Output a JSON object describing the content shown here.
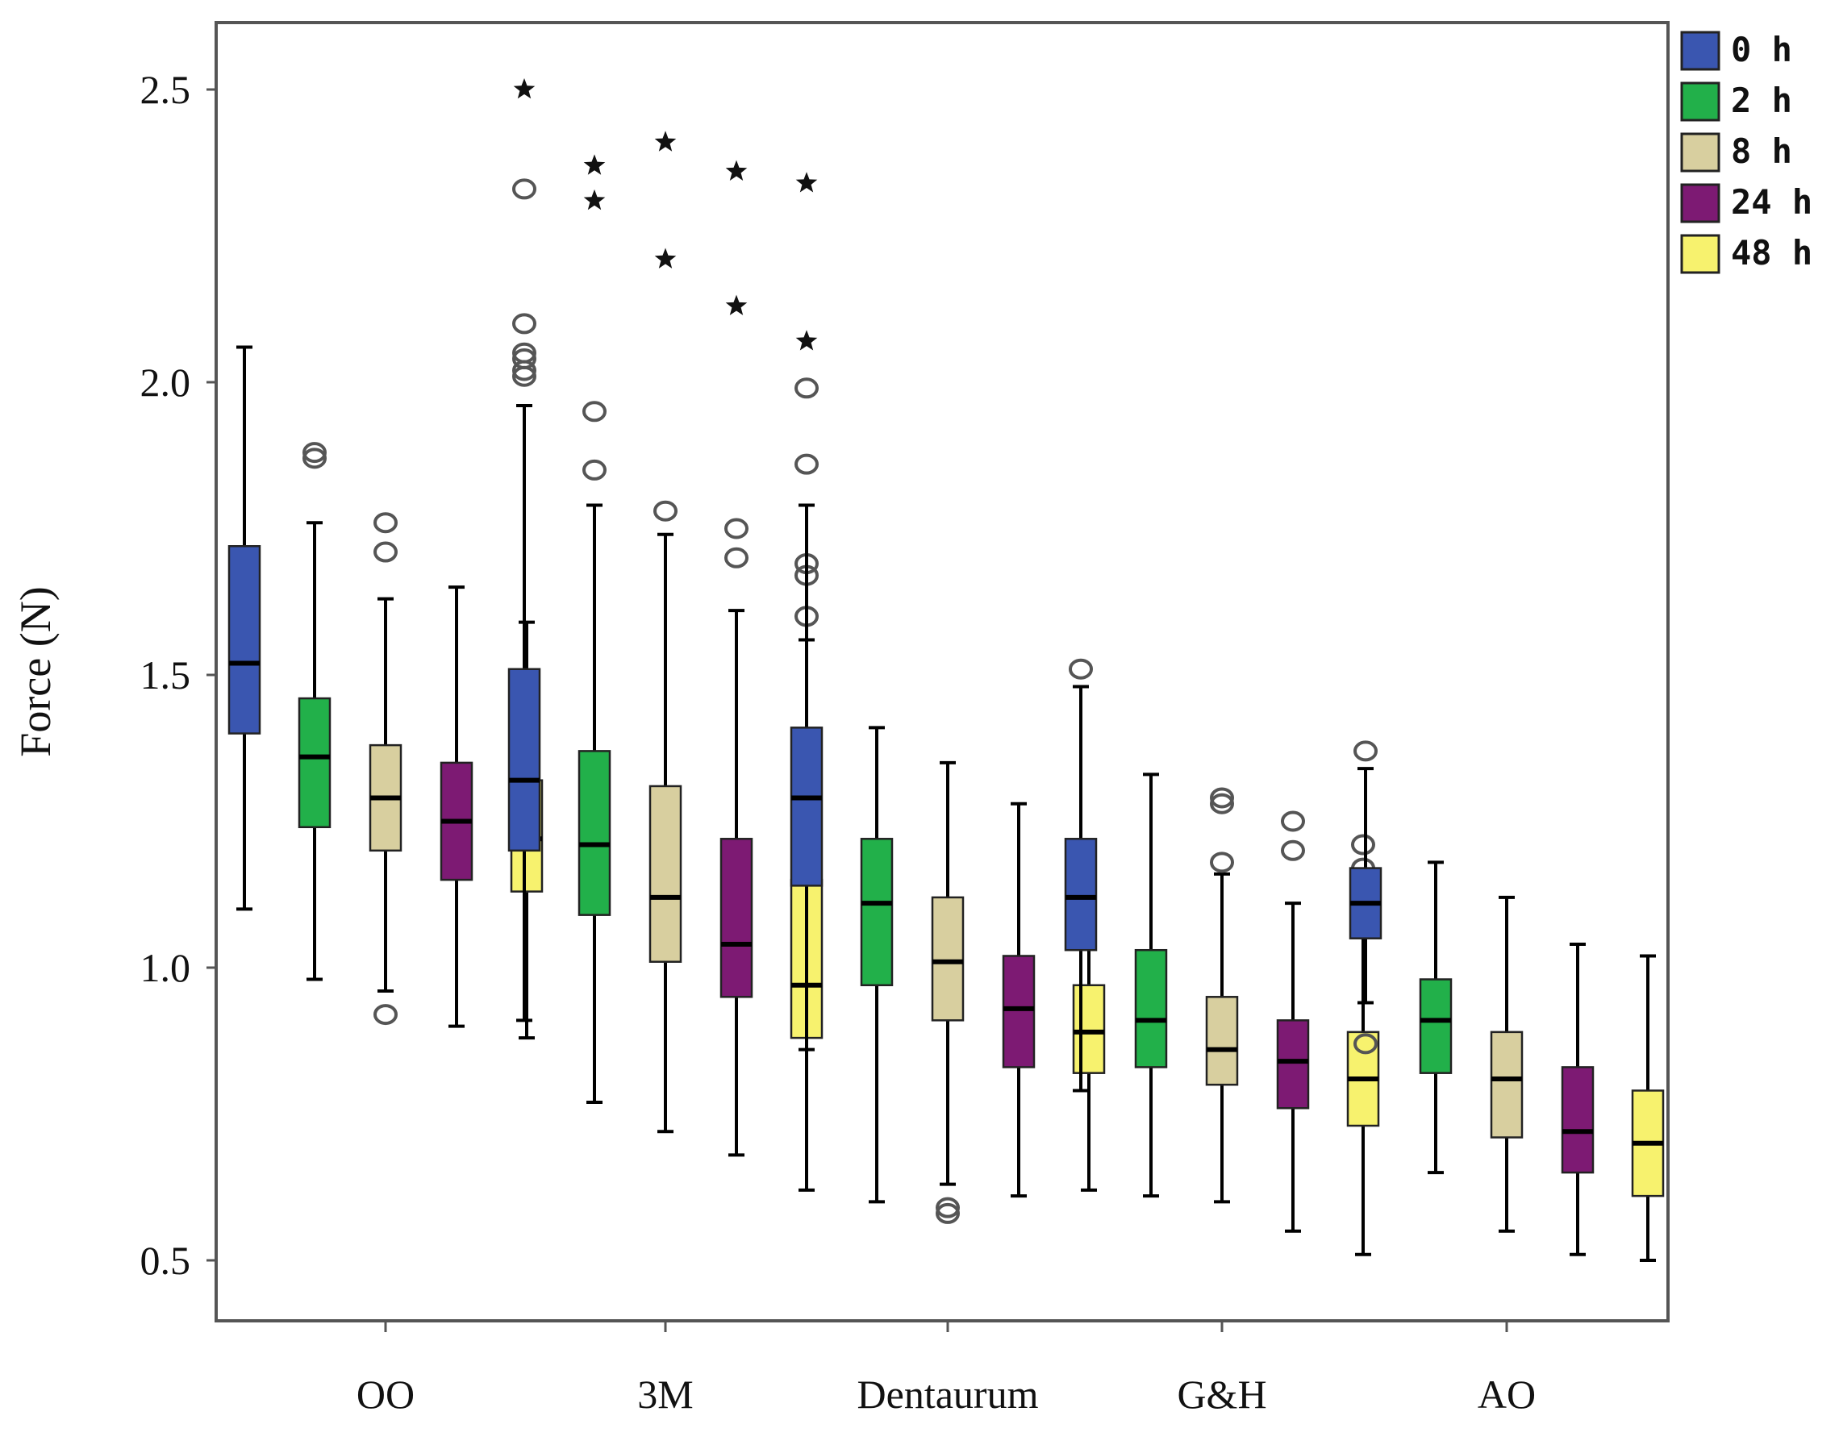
{
  "chart_data": {
    "type": "boxplot",
    "ylabel": "Force (N)",
    "ylim": [
      0.3,
      2.6
    ],
    "yticks": [
      {
        "value": 0.5,
        "label": "0.5"
      },
      {
        "value": 1.0,
        "label": "1.0"
      },
      {
        "value": 1.5,
        "label": "1.5"
      },
      {
        "value": 2.0,
        "label": "2.0"
      },
      {
        "value": 2.5,
        "label": "2.5"
      }
    ],
    "categories": [
      "OO",
      "3M",
      "Dentaurum",
      "G&H",
      "AO"
    ],
    "legend_position": "top-right",
    "series": [
      {
        "name": "0 h",
        "color": "#3a56b0"
      },
      {
        "name": "2 h",
        "color": "#22b04a"
      },
      {
        "name": "8 h",
        "color": "#d8cf9f"
      },
      {
        "name": "24 h",
        "color": "#7d1a73"
      },
      {
        "name": "48 h",
        "color": "#f7f26e"
      }
    ],
    "boxes": [
      [
        {
          "whisker_low": 1.1,
          "q1": 1.4,
          "median": 1.52,
          "q3": 1.72,
          "whisker_high": 2.06,
          "outliers": [],
          "extremes": []
        },
        {
          "whisker_low": 0.98,
          "q1": 1.24,
          "median": 1.36,
          "q3": 1.46,
          "whisker_high": 1.76,
          "outliers": [
            1.87,
            1.88
          ],
          "extremes": []
        },
        {
          "whisker_low": 0.96,
          "q1": 1.2,
          "median": 1.29,
          "q3": 1.38,
          "whisker_high": 1.63,
          "outliers": [
            0.92,
            1.71,
            1.76
          ],
          "extremes": []
        },
        {
          "whisker_low": 0.9,
          "q1": 1.15,
          "median": 1.25,
          "q3": 1.35,
          "whisker_high": 1.65,
          "outliers": [],
          "extremes": []
        },
        {
          "whisker_low": 0.88,
          "q1": 1.13,
          "median": 1.22,
          "q3": 1.32,
          "whisker_high": 1.59,
          "outliers": [],
          "extremes": []
        }
      ],
      [
        {
          "whisker_low": 0.91,
          "q1": 1.2,
          "median": 1.32,
          "q3": 1.51,
          "whisker_high": 1.96,
          "outliers": [
            2.01,
            2.02,
            2.04,
            2.05,
            2.1,
            2.33
          ],
          "extremes": [
            2.5
          ]
        },
        {
          "whisker_low": 0.77,
          "q1": 1.09,
          "median": 1.21,
          "q3": 1.37,
          "whisker_high": 1.79,
          "outliers": [
            1.85,
            1.95
          ],
          "extremes": [
            2.31,
            2.37
          ]
        },
        {
          "whisker_low": 0.72,
          "q1": 1.01,
          "median": 1.12,
          "q3": 1.31,
          "whisker_high": 1.74,
          "outliers": [
            1.78
          ],
          "extremes": [
            2.21,
            2.41
          ]
        },
        {
          "whisker_low": 0.68,
          "q1": 0.95,
          "median": 1.04,
          "q3": 1.22,
          "whisker_high": 1.61,
          "outliers": [
            1.7,
            1.75
          ],
          "extremes": [
            2.13,
            2.36
          ]
        },
        {
          "whisker_low": 0.62,
          "q1": 0.88,
          "median": 0.97,
          "q3": 1.15,
          "whisker_high": 1.56,
          "outliers": [
            1.6,
            1.67,
            1.69
          ],
          "extremes": [
            2.07,
            2.34
          ]
        }
      ],
      [
        {
          "whisker_low": 0.86,
          "q1": 1.14,
          "median": 1.29,
          "q3": 1.41,
          "whisker_high": 1.79,
          "outliers": [
            1.86,
            1.99
          ],
          "extremes": []
        },
        {
          "whisker_low": 0.6,
          "q1": 0.97,
          "median": 1.11,
          "q3": 1.22,
          "whisker_high": 1.41,
          "outliers": [],
          "extremes": []
        },
        {
          "whisker_low": 0.63,
          "q1": 0.91,
          "median": 1.01,
          "q3": 1.12,
          "whisker_high": 1.35,
          "outliers": [
            0.58,
            0.59
          ],
          "extremes": []
        },
        {
          "whisker_low": 0.61,
          "q1": 0.83,
          "median": 0.93,
          "q3": 1.02,
          "whisker_high": 1.28,
          "outliers": [],
          "extremes": []
        },
        {
          "whisker_low": 0.62,
          "q1": 0.82,
          "median": 0.89,
          "q3": 0.97,
          "whisker_high": 1.18,
          "outliers": [],
          "extremes": []
        }
      ],
      [
        {
          "whisker_low": 0.79,
          "q1": 1.03,
          "median": 1.12,
          "q3": 1.22,
          "whisker_high": 1.48,
          "outliers": [
            1.51
          ],
          "extremes": []
        },
        {
          "whisker_low": 0.61,
          "q1": 0.83,
          "median": 0.91,
          "q3": 1.03,
          "whisker_high": 1.33,
          "outliers": [],
          "extremes": []
        },
        {
          "whisker_low": 0.6,
          "q1": 0.8,
          "median": 0.86,
          "q3": 0.95,
          "whisker_high": 1.16,
          "outliers": [
            1.18,
            1.28,
            1.29
          ],
          "extremes": []
        },
        {
          "whisker_low": 0.55,
          "q1": 0.76,
          "median": 0.84,
          "q3": 0.91,
          "whisker_high": 1.11,
          "outliers": [
            1.2,
            1.25
          ],
          "extremes": []
        },
        {
          "whisker_low": 0.51,
          "q1": 0.73,
          "median": 0.81,
          "q3": 0.89,
          "whisker_high": 1.08,
          "outliers": [
            1.17,
            1.21
          ],
          "extremes": []
        }
      ],
      [
        {
          "whisker_low": 0.94,
          "q1": 1.05,
          "median": 1.11,
          "q3": 1.17,
          "whisker_high": 1.34,
          "outliers": [
            0.87,
            1.37
          ],
          "extremes": []
        },
        {
          "whisker_low": 0.65,
          "q1": 0.82,
          "median": 0.91,
          "q3": 0.98,
          "whisker_high": 1.18,
          "outliers": [],
          "extremes": []
        },
        {
          "whisker_low": 0.55,
          "q1": 0.71,
          "median": 0.81,
          "q3": 0.89,
          "whisker_high": 1.12,
          "outliers": [],
          "extremes": []
        },
        {
          "whisker_low": 0.51,
          "q1": 0.65,
          "median": 0.72,
          "q3": 0.83,
          "whisker_high": 1.04,
          "outliers": [],
          "extremes": []
        },
        {
          "whisker_low": 0.5,
          "q1": 0.61,
          "median": 0.7,
          "q3": 0.79,
          "whisker_high": 1.02,
          "outliers": [],
          "extremes": []
        }
      ]
    ]
  }
}
